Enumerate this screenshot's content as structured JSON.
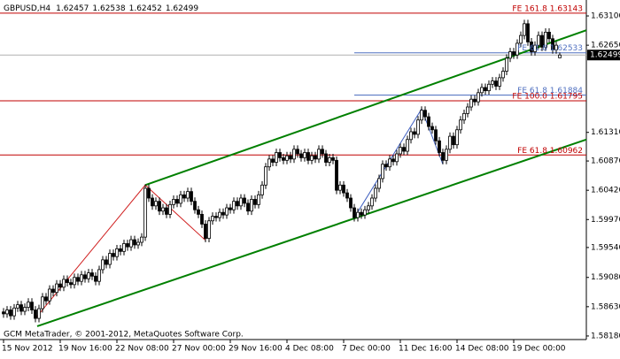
{
  "chart_data": {
    "type": "candlestick",
    "symbol": "GBPUSD,H4",
    "footer": "GCM MetaTrader, © 2001-2012, MetaQuotes Software Corp.",
    "categories": [
      "15 Nov 2012",
      null,
      null,
      null,
      null,
      null,
      null,
      null,
      null,
      null,
      null,
      null,
      null,
      null,
      null,
      null,
      "19 Nov 16:00",
      null,
      null,
      null,
      null,
      null,
      null,
      null,
      null,
      null,
      null,
      null,
      null,
      null,
      null,
      null,
      "22 Nov 08:00",
      null,
      null,
      null,
      null,
      null,
      null,
      null,
      null,
      null,
      null,
      null,
      null,
      null,
      null,
      null,
      "27 Nov 00:00",
      null,
      null,
      null,
      null,
      null,
      null,
      null,
      null,
      null,
      null,
      null,
      null,
      null,
      null,
      null,
      "29 Nov 16:00",
      null,
      null,
      null,
      null,
      null,
      null,
      null,
      null,
      null,
      null,
      null,
      null,
      null,
      null,
      null,
      "4 Dec 08:00",
      null,
      null,
      null,
      null,
      null,
      null,
      null,
      null,
      null,
      null,
      null,
      null,
      null,
      null,
      null,
      "7 Dec 00:00",
      null,
      null,
      null,
      null,
      null,
      null,
      null,
      null,
      null,
      null,
      null,
      null,
      null,
      null,
      null,
      "11 Dec 16:00",
      null,
      null,
      null,
      null,
      null,
      null,
      null,
      null,
      null,
      null,
      null,
      null,
      null,
      null,
      null,
      "14 Dec 08:00",
      null,
      null,
      null,
      null,
      null,
      null,
      null,
      null,
      null,
      null,
      null,
      null,
      null,
      null,
      null,
      "19 Dec 00:00",
      null,
      null,
      null,
      null,
      null,
      null,
      null,
      null,
      null,
      null,
      null,
      null,
      null
    ],
    "open": [
      1.5855,
      1.5852,
      1.5858,
      1.5849,
      1.5861,
      1.5866,
      1.5856,
      1.5862,
      1.587,
      1.5858,
      1.5845,
      1.586,
      1.5878,
      1.5872,
      1.589,
      1.5885,
      1.5898,
      1.5893,
      1.5905,
      1.59,
      1.5897,
      1.5908,
      1.5902,
      1.5912,
      1.5906,
      1.5915,
      1.591,
      1.5902,
      1.592,
      1.5935,
      1.5928,
      1.5945,
      1.594,
      1.5952,
      1.5948,
      1.596,
      1.5955,
      1.5966,
      1.5958,
      1.5962,
      1.597,
      1.6045,
      1.603,
      1.6018,
      1.6025,
      1.601,
      1.6015,
      1.6005,
      1.602,
      1.6028,
      1.6022,
      1.6035,
      1.603,
      1.604,
      1.6025,
      1.6012,
      1.6005,
      1.599,
      1.5968,
      1.5995,
      1.6002,
      1.6,
      1.6008,
      1.6004,
      1.6015,
      1.6012,
      1.6025,
      1.6018,
      1.603,
      1.6022,
      1.601,
      1.6028,
      1.602,
      1.6035,
      1.605,
      1.6078,
      1.609,
      1.6085,
      1.61,
      1.6092,
      1.6088,
      1.6095,
      1.609,
      1.6105,
      1.6098,
      1.6092,
      1.61,
      1.6088,
      1.6095,
      1.609,
      1.6105,
      1.6098,
      1.6085,
      1.6092,
      1.6088,
      1.6042,
      1.605,
      1.6038,
      1.603,
      1.6015,
      1.6,
      1.6008,
      1.6004,
      1.6012,
      1.6018,
      1.603,
      1.6045,
      1.606,
      1.6082,
      1.6078,
      1.609,
      1.6086,
      1.6098,
      1.6108,
      1.6102,
      1.612,
      1.6132,
      1.6128,
      1.615,
      1.6165,
      1.6155,
      1.614,
      1.6135,
      1.6118,
      1.61,
      1.6088,
      1.6105,
      1.6125,
      1.6112,
      1.6135,
      1.615,
      1.616,
      1.617,
      1.6182,
      1.6178,
      1.6192,
      1.62,
      1.6195,
      1.6205,
      1.621,
      1.6202,
      1.6215,
      1.6225,
      1.6245,
      1.6255,
      1.625,
      1.6268,
      1.628,
      1.6298,
      1.627,
      1.6255,
      1.6265,
      1.628,
      1.6262,
      1.6285,
      1.6275,
      1.6258,
      1.62457
    ],
    "high": [
      1.5861,
      1.5864,
      1.5864,
      1.5867,
      1.5872,
      1.5872,
      1.5868,
      1.5876,
      1.5876,
      1.5864,
      1.5866,
      1.5884,
      1.5884,
      1.5896,
      1.5896,
      1.5904,
      1.5904,
      1.5911,
      1.5911,
      1.5906,
      1.5914,
      1.5914,
      1.5918,
      1.5918,
      1.5921,
      1.5921,
      1.5916,
      1.5926,
      1.5941,
      1.5941,
      1.5951,
      1.5951,
      1.5958,
      1.5958,
      1.5966,
      1.5966,
      1.5972,
      1.5972,
      1.5968,
      1.5976,
      1.6051,
      1.6051,
      1.6036,
      1.6031,
      1.6031,
      1.6021,
      1.6021,
      1.6026,
      1.6034,
      1.6034,
      1.6041,
      1.6041,
      1.6046,
      1.6046,
      1.6031,
      1.6018,
      1.6011,
      1.5996,
      1.6001,
      1.6008,
      1.6008,
      1.6014,
      1.6014,
      1.6021,
      1.6021,
      1.6031,
      1.6031,
      1.6036,
      1.6036,
      1.6028,
      1.6034,
      1.6034,
      1.6041,
      1.6056,
      1.6084,
      1.6096,
      1.6096,
      1.6106,
      1.6106,
      1.6098,
      1.6101,
      1.6101,
      1.6111,
      1.6111,
      1.6104,
      1.6106,
      1.6106,
      1.6101,
      1.6101,
      1.6111,
      1.6111,
      1.6104,
      1.6098,
      1.6098,
      1.6094,
      1.6056,
      1.6056,
      1.6044,
      1.6036,
      1.6021,
      1.6014,
      1.6014,
      1.6018,
      1.6024,
      1.6036,
      1.6051,
      1.6066,
      1.6088,
      1.6088,
      1.6096,
      1.6096,
      1.6104,
      1.6114,
      1.6114,
      1.6126,
      1.6138,
      1.6138,
      1.6156,
      1.6171,
      1.6171,
      1.6161,
      1.6146,
      1.6141,
      1.6124,
      1.6106,
      1.6111,
      1.6131,
      1.6131,
      1.6141,
      1.6156,
      1.6166,
      1.6176,
      1.6188,
      1.6188,
      1.6198,
      1.6206,
      1.6206,
      1.6211,
      1.6216,
      1.6216,
      1.6221,
      1.6231,
      1.6251,
      1.6261,
      1.6261,
      1.6274,
      1.6286,
      1.6304,
      1.6304,
      1.6276,
      1.6271,
      1.6286,
      1.6286,
      1.6291,
      1.6291,
      1.6281,
      1.6271,
      1.62538
    ],
    "low": [
      1.5846,
      1.5846,
      1.5843,
      1.5843,
      1.5855,
      1.585,
      1.585,
      1.5856,
      1.5852,
      1.5839,
      1.5839,
      1.5854,
      1.5866,
      1.5866,
      1.5879,
      1.5879,
      1.5887,
      1.5887,
      1.5894,
      1.5891,
      1.5891,
      1.5896,
      1.5896,
      1.59,
      1.59,
      1.5904,
      1.5896,
      1.5896,
      1.5914,
      1.5922,
      1.5922,
      1.5934,
      1.5934,
      1.5942,
      1.5942,
      1.5949,
      1.5949,
      1.5952,
      1.5952,
      1.5956,
      1.5964,
      1.6024,
      1.6012,
      1.6012,
      1.6004,
      1.6004,
      1.5999,
      1.5999,
      1.6014,
      1.6016,
      1.6016,
      1.6024,
      1.6024,
      1.6019,
      1.6006,
      1.5999,
      1.5984,
      1.5962,
      1.5962,
      1.5989,
      1.5994,
      1.5994,
      1.5998,
      1.5998,
      1.6006,
      1.6006,
      1.6012,
      1.6012,
      1.6016,
      1.6004,
      1.6004,
      1.6014,
      1.6014,
      1.6029,
      1.6044,
      1.6072,
      1.6079,
      1.6079,
      1.6086,
      1.6082,
      1.6082,
      1.6084,
      1.6084,
      1.6092,
      1.6086,
      1.6086,
      1.6082,
      1.6082,
      1.6084,
      1.6084,
      1.6092,
      1.6079,
      1.6079,
      1.6082,
      1.6036,
      1.6036,
      1.6032,
      1.6024,
      1.6009,
      1.5994,
      1.5994,
      1.5998,
      1.5998,
      1.6006,
      1.6012,
      1.6024,
      1.6039,
      1.6054,
      1.6072,
      1.6072,
      1.608,
      1.608,
      1.6092,
      1.6096,
      1.6096,
      1.6114,
      1.6122,
      1.6122,
      1.6144,
      1.6149,
      1.6134,
      1.6129,
      1.6112,
      1.6094,
      1.6082,
      1.6082,
      1.6099,
      1.6106,
      1.6106,
      1.6129,
      1.6144,
      1.6154,
      1.6164,
      1.6172,
      1.6172,
      1.6186,
      1.6189,
      1.6189,
      1.6199,
      1.6196,
      1.6196,
      1.6209,
      1.6219,
      1.6239,
      1.6244,
      1.6244,
      1.6262,
      1.6274,
      1.6264,
      1.6249,
      1.6249,
      1.6259,
      1.6256,
      1.6256,
      1.6269,
      1.6252,
      1.6252,
      1.62452
    ],
    "close": [
      1.5852,
      1.5858,
      1.5849,
      1.5861,
      1.5866,
      1.5856,
      1.5862,
      1.587,
      1.5858,
      1.5845,
      1.586,
      1.5878,
      1.5872,
      1.589,
      1.5885,
      1.5898,
      1.5893,
      1.5905,
      1.59,
      1.5897,
      1.5908,
      1.5902,
      1.5912,
      1.5906,
      1.5915,
      1.591,
      1.5902,
      1.592,
      1.5935,
      1.5928,
      1.5945,
      1.594,
      1.5952,
      1.5948,
      1.596,
      1.5955,
      1.5966,
      1.5958,
      1.5962,
      1.597,
      1.6045,
      1.603,
      1.6018,
      1.6025,
      1.601,
      1.6015,
      1.6005,
      1.602,
      1.6028,
      1.6022,
      1.6035,
      1.603,
      1.604,
      1.6025,
      1.6012,
      1.6005,
      1.599,
      1.5968,
      1.5995,
      1.6002,
      1.6,
      1.6008,
      1.6004,
      1.6015,
      1.6012,
      1.6025,
      1.6018,
      1.603,
      1.6022,
      1.601,
      1.6028,
      1.602,
      1.6035,
      1.605,
      1.6078,
      1.609,
      1.6085,
      1.61,
      1.6092,
      1.6088,
      1.6095,
      1.609,
      1.6105,
      1.6098,
      1.6092,
      1.61,
      1.6088,
      1.6095,
      1.609,
      1.6105,
      1.6098,
      1.6085,
      1.6092,
      1.6088,
      1.6042,
      1.605,
      1.6038,
      1.603,
      1.6015,
      1.6,
      1.6008,
      1.6004,
      1.6012,
      1.6018,
      1.603,
      1.6045,
      1.606,
      1.6082,
      1.6078,
      1.609,
      1.6086,
      1.6098,
      1.6108,
      1.6102,
      1.612,
      1.6132,
      1.6128,
      1.615,
      1.6165,
      1.6155,
      1.614,
      1.6135,
      1.6118,
      1.61,
      1.6088,
      1.6105,
      1.6125,
      1.6112,
      1.6135,
      1.615,
      1.616,
      1.617,
      1.6182,
      1.6178,
      1.6192,
      1.62,
      1.6195,
      1.6205,
      1.621,
      1.6202,
      1.6215,
      1.6225,
      1.6245,
      1.6255,
      1.625,
      1.6268,
      1.628,
      1.6298,
      1.627,
      1.6255,
      1.6265,
      1.628,
      1.6262,
      1.6285,
      1.6275,
      1.6258,
      1.6265,
      1.62499
    ],
    "ylim": [
      1.58125,
      1.63345
    ],
    "yticks": [
      {
        "value": 1.631,
        "label": "1.63100"
      },
      {
        "value": 1.6265,
        "label": "1.62650"
      },
      {
        "value": 1.6131,
        "label": "1.61310"
      },
      {
        "value": 1.6087,
        "label": "1.60870"
      },
      {
        "value": 1.6042,
        "label": "1.60420"
      },
      {
        "value": 1.5997,
        "label": "1.59970"
      },
      {
        "value": 1.5954,
        "label": "1.59540"
      },
      {
        "value": 1.5908,
        "label": "1.59080"
      },
      {
        "value": 1.5863,
        "label": "1.58630"
      },
      {
        "value": 1.5818,
        "label": "1.58180"
      }
    ],
    "levels": [
      {
        "value": 1.63143,
        "label": "FE 161.8 1.63143",
        "color": "#c00000"
      },
      {
        "value": 1.62533,
        "label": "FE 61.8 1.62533",
        "color": "#5070c0",
        "x": 99
      },
      {
        "value": 1.61884,
        "label": "FE 61.8 1.61884",
        "color": "#5070c0",
        "x": 99
      },
      {
        "value": 1.61795,
        "label": "FE 100.0 1.61795",
        "color": "#c00000"
      },
      {
        "value": 1.60962,
        "label": "FE 61.8 1.60962",
        "color": "#c00000"
      }
    ],
    "trendlines": [
      {
        "color": "#008000",
        "x": [
          40,
          164.5
        ],
        "y": [
          1.605,
          1.6288
        ]
      },
      {
        "color": "#008000",
        "x": [
          9.5,
          164.5
        ],
        "y": [
          1.5833,
          1.612
        ]
      },
      {
        "color": "#d02020",
        "x": [
          9,
          40,
          57
        ],
        "y": [
          1.5845,
          1.605,
          1.5965
        ]
      },
      {
        "color": "#4060c0",
        "x": [
          99,
          118,
          124
        ],
        "y": [
          1.6,
          1.6167,
          1.6082
        ]
      }
    ],
    "up_color": "#ffffff",
    "down_color": "#000000",
    "wick_color": "#000000"
  }
}
